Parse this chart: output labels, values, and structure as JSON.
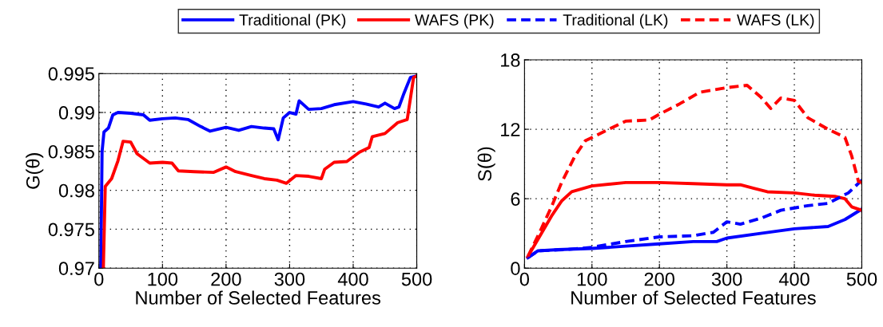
{
  "chart_data": [
    {
      "type": "line",
      "xlabel": "Number of Selected Features",
      "ylabel": "G(θ)",
      "xlim": [
        0,
        500
      ],
      "xticks": [
        0,
        100,
        200,
        300,
        400,
        500
      ],
      "ylim": [
        0.97,
        0.995
      ],
      "yticks": [
        0.97,
        0.975,
        0.98,
        0.985,
        0.99,
        0.995
      ],
      "grid": true,
      "legend": "top",
      "series": [
        {
          "name": "Traditional (PK)",
          "color": "#0000ff",
          "line_style": "solid",
          "x": [
            3,
            5,
            8,
            15,
            22,
            30,
            50,
            70,
            80,
            100,
            120,
            140,
            160,
            175,
            200,
            220,
            240,
            260,
            275,
            282,
            290,
            300,
            310,
            315,
            330,
            350,
            370,
            400,
            420,
            440,
            450,
            465,
            472,
            480,
            490,
            500
          ],
          "values": [
            0.97,
            0.985,
            0.9875,
            0.988,
            0.9897,
            0.99,
            0.9899,
            0.9897,
            0.989,
            0.9892,
            0.9893,
            0.9891,
            0.9882,
            0.9876,
            0.9881,
            0.9877,
            0.9882,
            0.988,
            0.9879,
            0.9865,
            0.9893,
            0.99,
            0.9898,
            0.9915,
            0.9904,
            0.9905,
            0.991,
            0.9914,
            0.9911,
            0.9907,
            0.9912,
            0.9905,
            0.9907,
            0.9925,
            0.9945,
            0.9947
          ]
        },
        {
          "name": "WAFS (PK)",
          "color": "#ff0000",
          "line_style": "solid",
          "x": [
            7,
            10,
            20,
            30,
            38,
            50,
            60,
            80,
            100,
            115,
            125,
            150,
            180,
            200,
            215,
            240,
            260,
            280,
            295,
            310,
            330,
            350,
            355,
            370,
            390,
            410,
            425,
            430,
            450,
            470,
            485,
            495,
            500
          ],
          "values": [
            0.97,
            0.9805,
            0.9815,
            0.9838,
            0.9863,
            0.9862,
            0.9847,
            0.9835,
            0.9836,
            0.9835,
            0.9825,
            0.9824,
            0.9823,
            0.983,
            0.9824,
            0.9819,
            0.9815,
            0.9813,
            0.9809,
            0.9819,
            0.9818,
            0.9815,
            0.9827,
            0.9836,
            0.9837,
            0.9849,
            0.9855,
            0.9869,
            0.9873,
            0.9887,
            0.9891,
            0.9945,
            0.9947
          ]
        }
      ]
    },
    {
      "type": "line",
      "xlabel": "Number of Selected Features",
      "ylabel": "S(θ)",
      "xlim": [
        0,
        500
      ],
      "xticks": [
        0,
        100,
        200,
        300,
        400,
        500
      ],
      "ylim": [
        0,
        18
      ],
      "yticks": [
        0,
        6,
        12,
        18
      ],
      "grid": true,
      "legend": "top",
      "series": [
        {
          "name": "Traditional (PK)",
          "color": "#0000ff",
          "line_style": "solid",
          "x": [
            5,
            20,
            50,
            100,
            150,
            200,
            250,
            285,
            300,
            350,
            400,
            450,
            475,
            500
          ],
          "values": [
            0.9,
            1.5,
            1.6,
            1.7,
            1.9,
            2.1,
            2.3,
            2.3,
            2.6,
            3.0,
            3.4,
            3.6,
            4.2,
            5.1
          ]
        },
        {
          "name": "WAFS (PK)",
          "color": "#ff0000",
          "line_style": "solid",
          "x": [
            5,
            20,
            40,
            55,
            70,
            100,
            150,
            200,
            250,
            300,
            320,
            340,
            360,
            400,
            430,
            460,
            475,
            485,
            500
          ],
          "values": [
            1.0,
            2.5,
            4.5,
            5.8,
            6.6,
            7.1,
            7.4,
            7.4,
            7.3,
            7.2,
            7.2,
            6.9,
            6.6,
            6.5,
            6.3,
            6.2,
            6.0,
            5.3,
            5.0
          ]
        },
        {
          "name": "Traditional (LK)",
          "color": "#0000ff",
          "line_style": "dashed",
          "x": [
            5,
            20,
            60,
            100,
            150,
            200,
            250,
            280,
            300,
            320,
            350,
            380,
            420,
            450,
            480,
            500
          ],
          "values": [
            0.9,
            1.5,
            1.6,
            1.8,
            2.3,
            2.7,
            2.8,
            3.1,
            4.0,
            3.8,
            4.3,
            5.0,
            5.4,
            5.6,
            6.5,
            7.6
          ]
        },
        {
          "name": "WAFS (LK)",
          "color": "#ff0000",
          "line_style": "dashed",
          "x": [
            5,
            20,
            40,
            55,
            75,
            90,
            125,
            150,
            185,
            200,
            230,
            260,
            280,
            300,
            330,
            350,
            365,
            380,
            400,
            420,
            450,
            475,
            485,
            495,
            500
          ],
          "values": [
            1.0,
            2.8,
            5.3,
            7.4,
            9.7,
            11.0,
            12.0,
            12.7,
            12.8,
            13.3,
            14.2,
            15.2,
            15.4,
            15.6,
            15.8,
            14.8,
            13.8,
            14.7,
            14.5,
            13.0,
            12.0,
            11.3,
            9.7,
            7.5,
            7.4
          ]
        }
      ]
    }
  ]
}
